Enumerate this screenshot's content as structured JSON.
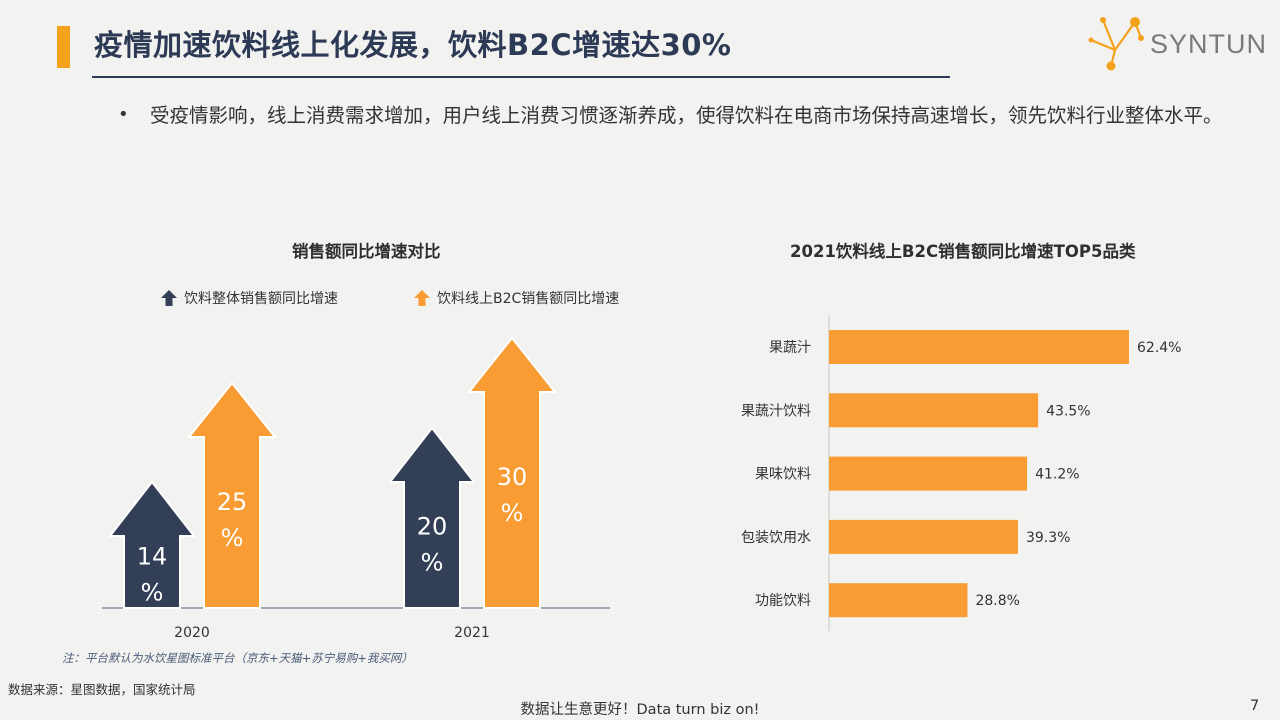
{
  "header": {
    "title": "疫情加速饮料线上化发展，饮料B2C增速达30%",
    "logo_text": "SYNTUN"
  },
  "bullet": {
    "text": "受疫情影响，线上消费需求增加，用户线上消费习惯逐渐养成，使得饮料在电商市场保持高速增长，领先饮料行业整体水平。"
  },
  "colors": {
    "navy": "#333f57",
    "orange": "#f89c33",
    "accent": "#f4a21c"
  },
  "chart_data": [
    {
      "type": "bar",
      "title": "销售额同比增速对比",
      "categories": [
        "2020",
        "2021"
      ],
      "series": [
        {
          "name": "饮料整体销售额同比增速",
          "values": [
            14,
            20
          ],
          "labels": [
            "14%",
            "20%"
          ],
          "color": "#333f57"
        },
        {
          "name": "饮料线上B2C销售额同比增速",
          "values": [
            25,
            30
          ],
          "labels": [
            "25%",
            "30%"
          ],
          "color": "#f89c33"
        }
      ],
      "marker": "arrow-up"
    },
    {
      "type": "bar",
      "orientation": "horizontal",
      "title": "2021饮料线上B2C销售额同比增速TOP5品类",
      "categories": [
        "果蔬汁",
        "果蔬汁饮料",
        "果味饮料",
        "包装饮用水",
        "功能饮料"
      ],
      "values": [
        62.4,
        43.5,
        41.2,
        39.3,
        28.8
      ],
      "labels": [
        "62.4%",
        "43.5%",
        "41.2%",
        "39.3%",
        "28.8%"
      ],
      "color": "#f89c33"
    }
  ],
  "note": "注：平台默认为水饮星图标准平台（京东+天猫+苏宁易购+我买网）",
  "source": "数据来源：星图数据，国家统计局",
  "footer": "数据让生意更好！Data turn biz on!",
  "page_number": "7"
}
